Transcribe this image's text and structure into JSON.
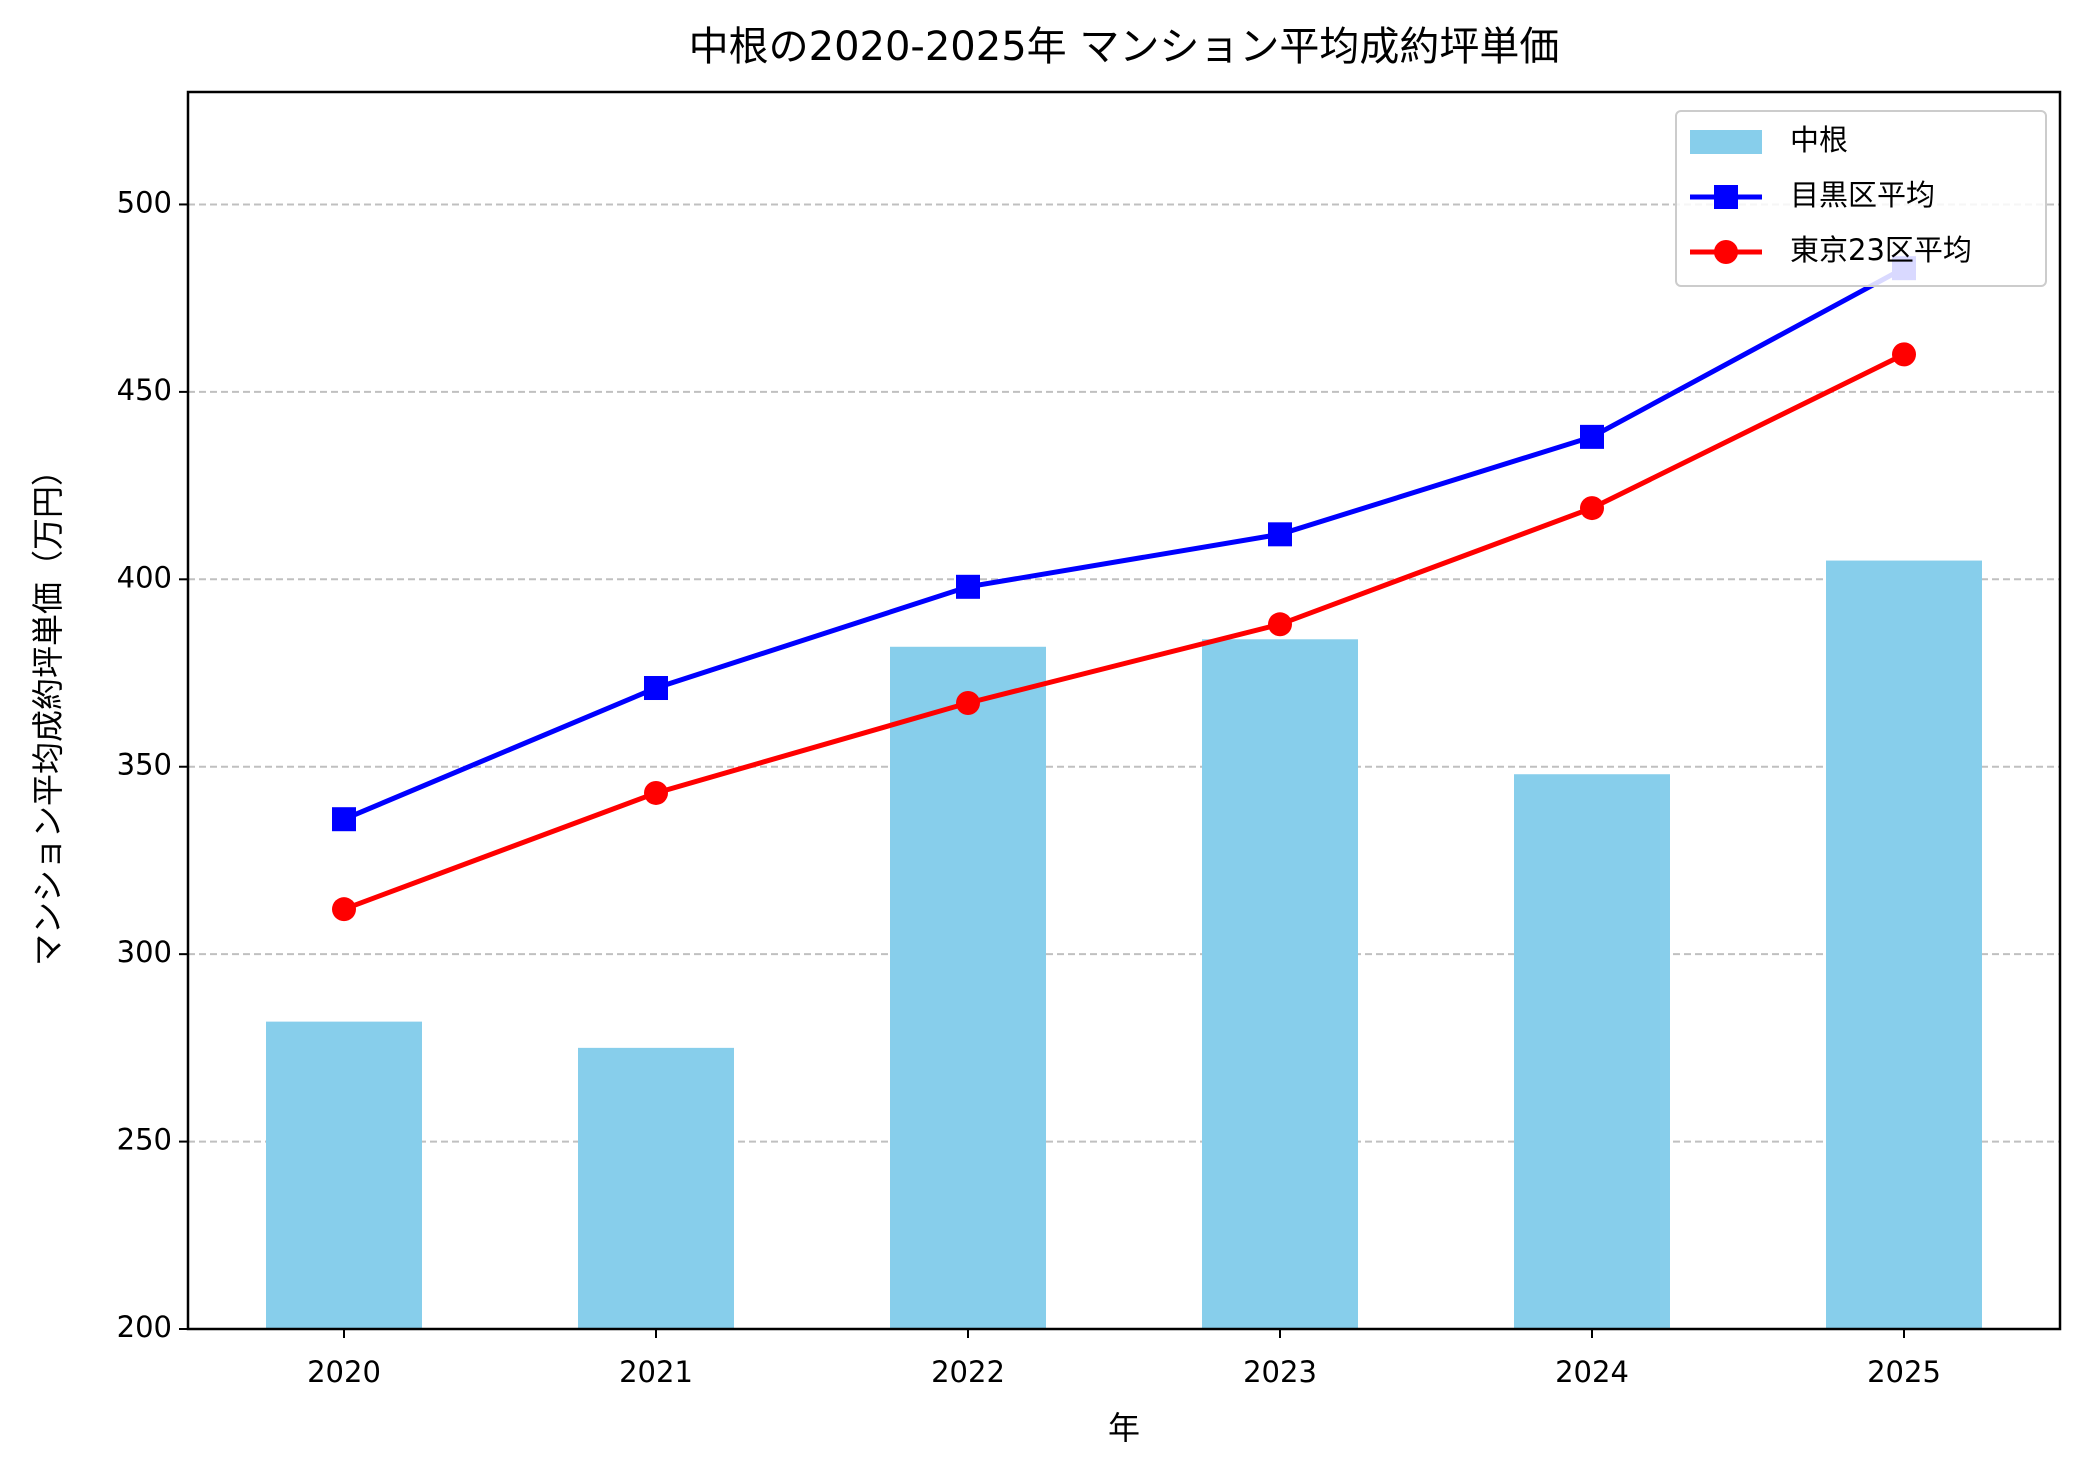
{
  "chart_data": {
    "type": "bar",
    "title": "中根の2020-2025年 マンション平均成約坪単価",
    "x_label": "年",
    "y_label": "マンション平均成約坪単価（万円）",
    "categories": [
      "2020",
      "2021",
      "2022",
      "2023",
      "2024",
      "2025"
    ],
    "series": [
      {
        "name": "中根",
        "type": "bar",
        "color": "#87ceeb",
        "values": [
          282,
          275,
          382,
          384,
          348,
          405
        ]
      },
      {
        "name": "目黒区平均",
        "type": "line",
        "marker": "square",
        "color": "#0000ff",
        "values": [
          336,
          371,
          398,
          412,
          438,
          483
        ]
      },
      {
        "name": "東京23区平均",
        "type": "line",
        "marker": "circle",
        "color": "#ff0000",
        "values": [
          312,
          343,
          367,
          388,
          419,
          460
        ]
      }
    ],
    "ylim": [
      200,
      530
    ],
    "yticks": [
      200,
      250,
      300,
      350,
      400,
      450,
      500
    ],
    "grid": true,
    "legend": "upper right"
  }
}
